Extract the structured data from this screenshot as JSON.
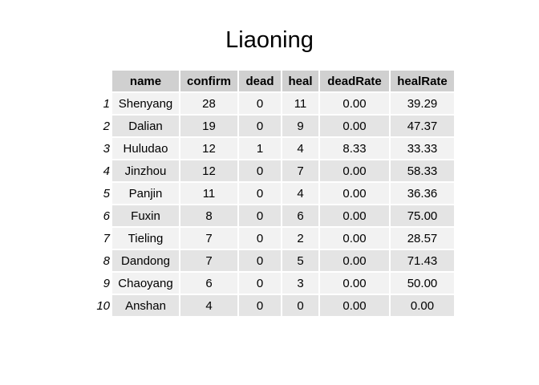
{
  "chart_data": {
    "type": "table",
    "title": "Liaoning",
    "columns": [
      "name",
      "confirm",
      "dead",
      "heal",
      "deadRate",
      "healRate"
    ],
    "row_names": [
      "1",
      "2",
      "3",
      "4",
      "5",
      "6",
      "7",
      "8",
      "9",
      "10"
    ],
    "rows": [
      [
        "Shenyang",
        "28",
        "0",
        "11",
        "0.00",
        "39.29"
      ],
      [
        "Dalian",
        "19",
        "0",
        "9",
        "0.00",
        "47.37"
      ],
      [
        "Huludao",
        "12",
        "1",
        "4",
        "8.33",
        "33.33"
      ],
      [
        "Jinzhou",
        "12",
        "0",
        "7",
        "0.00",
        "58.33"
      ],
      [
        "Panjin",
        "11",
        "0",
        "4",
        "0.00",
        "36.36"
      ],
      [
        "Fuxin",
        "8",
        "0",
        "6",
        "0.00",
        "75.00"
      ],
      [
        "Tieling",
        "7",
        "0",
        "2",
        "0.00",
        "28.57"
      ],
      [
        "Dandong",
        "7",
        "0",
        "5",
        "0.00",
        "71.43"
      ],
      [
        "Chaoyang",
        "6",
        "0",
        "3",
        "0.00",
        "50.00"
      ],
      [
        "Anshan",
        "4",
        "0",
        "0",
        "0.00",
        "0.00"
      ]
    ]
  }
}
